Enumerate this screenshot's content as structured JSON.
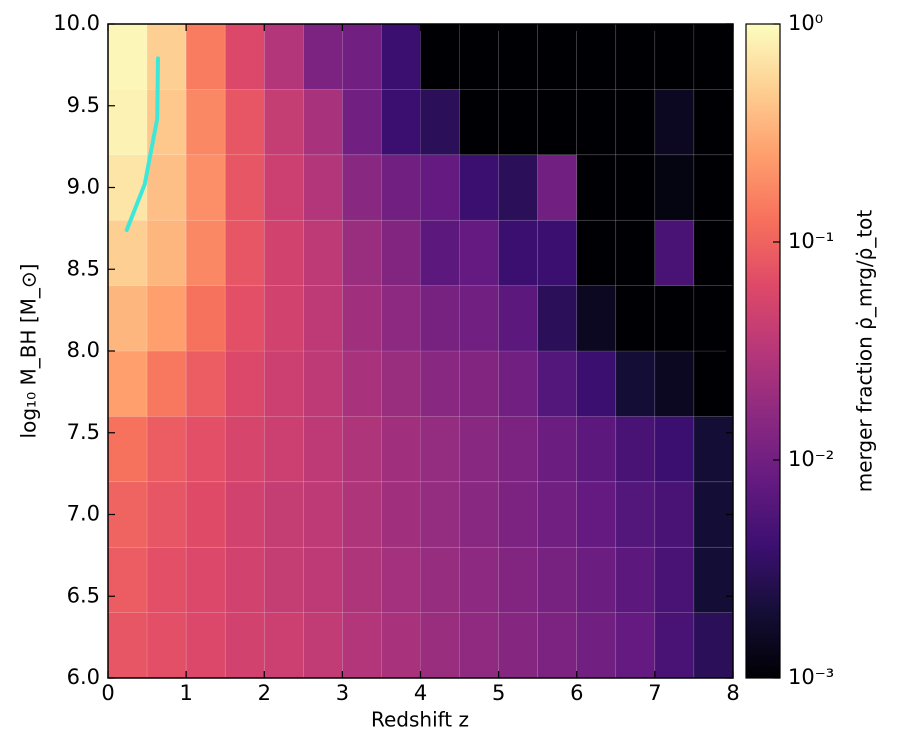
{
  "chart_data": {
    "type": "heatmap",
    "xlabel": "Redshift z",
    "ylabel": "log₁₀ M_BH [M_⊙]",
    "x_edges": [
      0,
      0.5,
      1,
      1.5,
      2,
      2.5,
      3,
      3.5,
      4,
      4.5,
      5,
      5.5,
      6,
      6.5,
      7,
      7.5,
      8
    ],
    "y_edges": [
      6.0,
      6.4,
      6.8,
      7.2,
      7.6,
      8.0,
      8.4,
      8.8,
      9.2,
      9.6,
      10.0
    ],
    "xlim": [
      0,
      8
    ],
    "ylim": [
      6.0,
      10.0
    ],
    "xticks": [
      0,
      1,
      2,
      3,
      4,
      5,
      6,
      7,
      8
    ],
    "yticks": [
      {
        "value": 6,
        "label": "6.0"
      },
      6.5,
      {
        "value": 7,
        "label": "7.0"
      },
      7.5,
      {
        "value": 8,
        "label": "8.0"
      },
      8.5,
      {
        "value": 9,
        "label": "9.0"
      },
      9.5,
      {
        "value": 10,
        "label": "10.0"
      }
    ],
    "colormap": "magma",
    "values": [
      [
        0.08,
        0.07,
        0.06,
        0.05,
        0.045,
        0.038,
        0.03,
        0.025,
        0.02,
        0.017,
        0.014,
        0.012,
        0.01,
        0.008,
        0.005,
        0.003
      ],
      [
        0.09,
        0.07,
        0.06,
        0.05,
        0.04,
        0.035,
        0.028,
        0.023,
        0.019,
        0.016,
        0.013,
        0.011,
        0.009,
        0.007,
        0.005,
        0.002
      ],
      [
        0.1,
        0.08,
        0.065,
        0.05,
        0.04,
        0.035,
        0.028,
        0.022,
        0.018,
        0.015,
        0.012,
        0.01,
        0.008,
        0.006,
        0.005,
        0.002
      ],
      [
        0.13,
        0.09,
        0.07,
        0.055,
        0.045,
        0.035,
        0.028,
        0.022,
        0.018,
        0.015,
        0.012,
        0.009,
        0.007,
        0.005,
        0.004,
        0.002
      ],
      [
        0.25,
        0.14,
        0.09,
        0.06,
        0.045,
        0.035,
        0.025,
        0.02,
        0.015,
        0.013,
        0.01,
        0.006,
        0.004,
        0.002,
        0.0015,
        0.001
      ],
      [
        0.35,
        0.25,
        0.13,
        0.07,
        0.05,
        0.035,
        0.022,
        0.016,
        0.011,
        0.01,
        0.007,
        0.003,
        0.0015,
        0.001,
        0.001,
        0.001
      ],
      [
        0.5,
        0.35,
        0.18,
        0.08,
        0.05,
        0.035,
        0.02,
        0.013,
        0.007,
        0.008,
        0.004,
        0.004,
        0.001,
        0.001,
        0.005,
        0.001
      ],
      [
        0.7,
        0.4,
        0.2,
        0.08,
        0.045,
        0.03,
        0.015,
        0.01,
        0.008,
        0.004,
        0.003,
        0.01,
        0.001,
        0.001,
        0.0012,
        0.001
      ],
      [
        0.85,
        0.45,
        0.18,
        0.08,
        0.04,
        0.025,
        0.01,
        0.004,
        0.003,
        0.001,
        0.001,
        0.001,
        0.001,
        0.001,
        0.0015,
        0.001
      ],
      [
        0.9,
        0.5,
        0.15,
        0.06,
        0.03,
        0.012,
        0.01,
        0.004,
        0.001,
        0.001,
        0.001,
        0.001,
        0.001,
        0.001,
        0.001,
        0.001
      ]
    ],
    "lines": [
      {
        "color": "#3ee8d8",
        "x": [
          0.24,
          0.47,
          0.63,
          0.64
        ],
        "y": [
          8.74,
          9.02,
          9.42,
          9.79
        ]
      }
    ],
    "colorbar": {
      "label": "merger fraction ρ̇_mrg/ρ̇_tot",
      "scale": "log",
      "lim": [
        0.001,
        1
      ],
      "ticks": [
        {
          "value": 0.001,
          "label": "10⁻³"
        },
        {
          "value": 0.01,
          "label": "10⁻²"
        },
        {
          "value": 0.1,
          "label": "10⁻¹"
        },
        {
          "value": 1,
          "label": "10⁰"
        }
      ]
    }
  }
}
